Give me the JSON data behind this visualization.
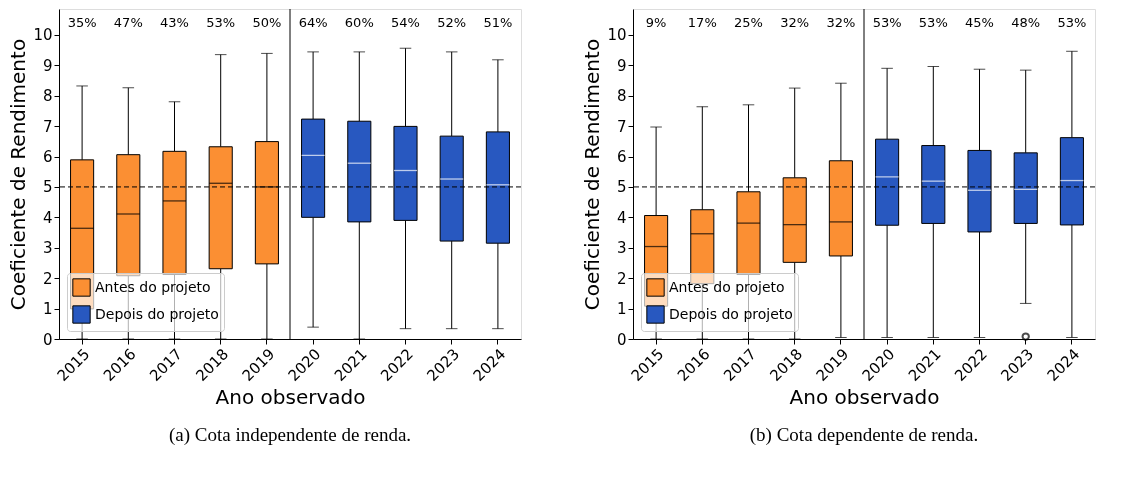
{
  "chart_data": [
    {
      "type": "box",
      "title": "(a)  Cota independente de renda.",
      "xlabel": "Ano observado",
      "ylabel": "Coeficiente de Rendimento",
      "categories": [
        "2015",
        "2016",
        "2017",
        "2018",
        "2019",
        "2020",
        "2021",
        "2022",
        "2023",
        "2024"
      ],
      "series": [
        {
          "name": "Antes do projeto",
          "color": "#fb8f33",
          "boxes": [
            {
              "low": 0,
              "q1": 0.99,
              "median": 3.64,
              "q3": 5.89,
              "high": 8.32
            },
            {
              "low": 0,
              "q1": 2.08,
              "median": 4.11,
              "q3": 6.06,
              "high": 8.26
            },
            {
              "low": 0,
              "q1": 2.12,
              "median": 4.54,
              "q3": 6.17,
              "high": 7.8
            },
            {
              "low": 0,
              "q1": 2.31,
              "median": 5.12,
              "q3": 6.32,
              "high": 9.35
            },
            {
              "low": 0,
              "q1": 2.47,
              "median": 5.0,
              "q3": 6.49,
              "high": 9.39
            },
            null,
            null,
            null,
            null,
            null
          ]
        },
        {
          "name": "Depois do projeto",
          "color": "#2858c0",
          "boxes": [
            null,
            null,
            null,
            null,
            null,
            {
              "low": 0.39,
              "q1": 4.0,
              "median": 6.04,
              "q3": 7.23,
              "high": 9.44
            },
            {
              "low": 0,
              "q1": 3.85,
              "median": 5.78,
              "q3": 7.16,
              "high": 9.44
            },
            {
              "low": 0.34,
              "q1": 3.9,
              "median": 5.54,
              "q3": 6.99,
              "high": 9.56
            },
            {
              "low": 0.34,
              "q1": 3.22,
              "median": 5.26,
              "q3": 6.67,
              "high": 9.44
            },
            {
              "low": 0.34,
              "q1": 3.15,
              "median": 5.07,
              "q3": 6.81,
              "high": 9.18
            }
          ]
        }
      ],
      "annotations": [
        "35%",
        "47%",
        "43%",
        "53%",
        "50%",
        "64%",
        "60%",
        "54%",
        "52%",
        "51%"
      ],
      "ylim": [
        0,
        10.85
      ],
      "yticks": [
        0,
        1,
        2,
        3,
        4,
        5,
        6,
        7,
        8,
        9,
        10
      ],
      "ref_lines": [
        {
          "axis": "y",
          "value": 5,
          "color": "#000000",
          "line_style": "dashed"
        },
        {
          "axis": "x",
          "value": "2020",
          "color": "#000000",
          "line_style": "solid"
        }
      ],
      "legend": "bottom left",
      "grid": false
    },
    {
      "type": "box",
      "title": "(b)  Cota dependente de renda.",
      "xlabel": "Ano observado",
      "ylabel": "Coeficiente de Rendimento",
      "categories": [
        "2015",
        "2016",
        "2017",
        "2018",
        "2019",
        "2020",
        "2021",
        "2022",
        "2023",
        "2024"
      ],
      "series": [
        {
          "name": "Antes do projeto",
          "color": "#fb8f33",
          "boxes": [
            {
              "low": 0,
              "q1": 1.08,
              "median": 3.04,
              "q3": 4.06,
              "high": 6.97
            },
            {
              "low": 0,
              "q1": 1.82,
              "median": 3.46,
              "q3": 4.25,
              "high": 7.64
            },
            {
              "low": 0,
              "q1": 2.12,
              "median": 3.81,
              "q3": 4.84,
              "high": 7.7
            },
            {
              "low": 0,
              "q1": 2.52,
              "median": 3.76,
              "q3": 5.3,
              "high": 8.25
            },
            {
              "low": 0.05,
              "q1": 2.73,
              "median": 3.85,
              "q3": 5.86,
              "high": 8.41
            },
            null,
            null,
            null,
            null,
            null
          ]
        },
        {
          "name": "Depois do projeto",
          "color": "#2858c0",
          "boxes": [
            null,
            null,
            null,
            null,
            null,
            {
              "low": 0.05,
              "q1": 3.74,
              "median": 5.33,
              "q3": 6.57,
              "high": 8.9
            },
            {
              "low": 0.05,
              "q1": 3.8,
              "median": 5.19,
              "q3": 6.36,
              "high": 8.96
            },
            {
              "low": 0.05,
              "q1": 3.52,
              "median": 4.89,
              "q3": 6.2,
              "high": 8.87
            },
            {
              "low": 1.17,
              "q1": 3.8,
              "median": 4.92,
              "q3": 6.12,
              "high": 8.84,
              "outliers": [
                0.08
              ]
            },
            {
              "low": 0.05,
              "q1": 3.75,
              "median": 5.21,
              "q3": 6.62,
              "high": 9.46
            }
          ]
        }
      ],
      "annotations": [
        "9%",
        "17%",
        "25%",
        "32%",
        "32%",
        "53%",
        "53%",
        "45%",
        "48%",
        "53%"
      ],
      "ylim": [
        0,
        10.85
      ],
      "yticks": [
        0,
        1,
        2,
        3,
        4,
        5,
        6,
        7,
        8,
        9,
        10
      ],
      "ref_lines": [
        {
          "axis": "y",
          "value": 5,
          "color": "#000000",
          "line_style": "dashed"
        },
        {
          "axis": "x",
          "value": "2020",
          "color": "#000000",
          "line_style": "solid"
        }
      ],
      "legend": "bottom left",
      "grid": false
    }
  ]
}
